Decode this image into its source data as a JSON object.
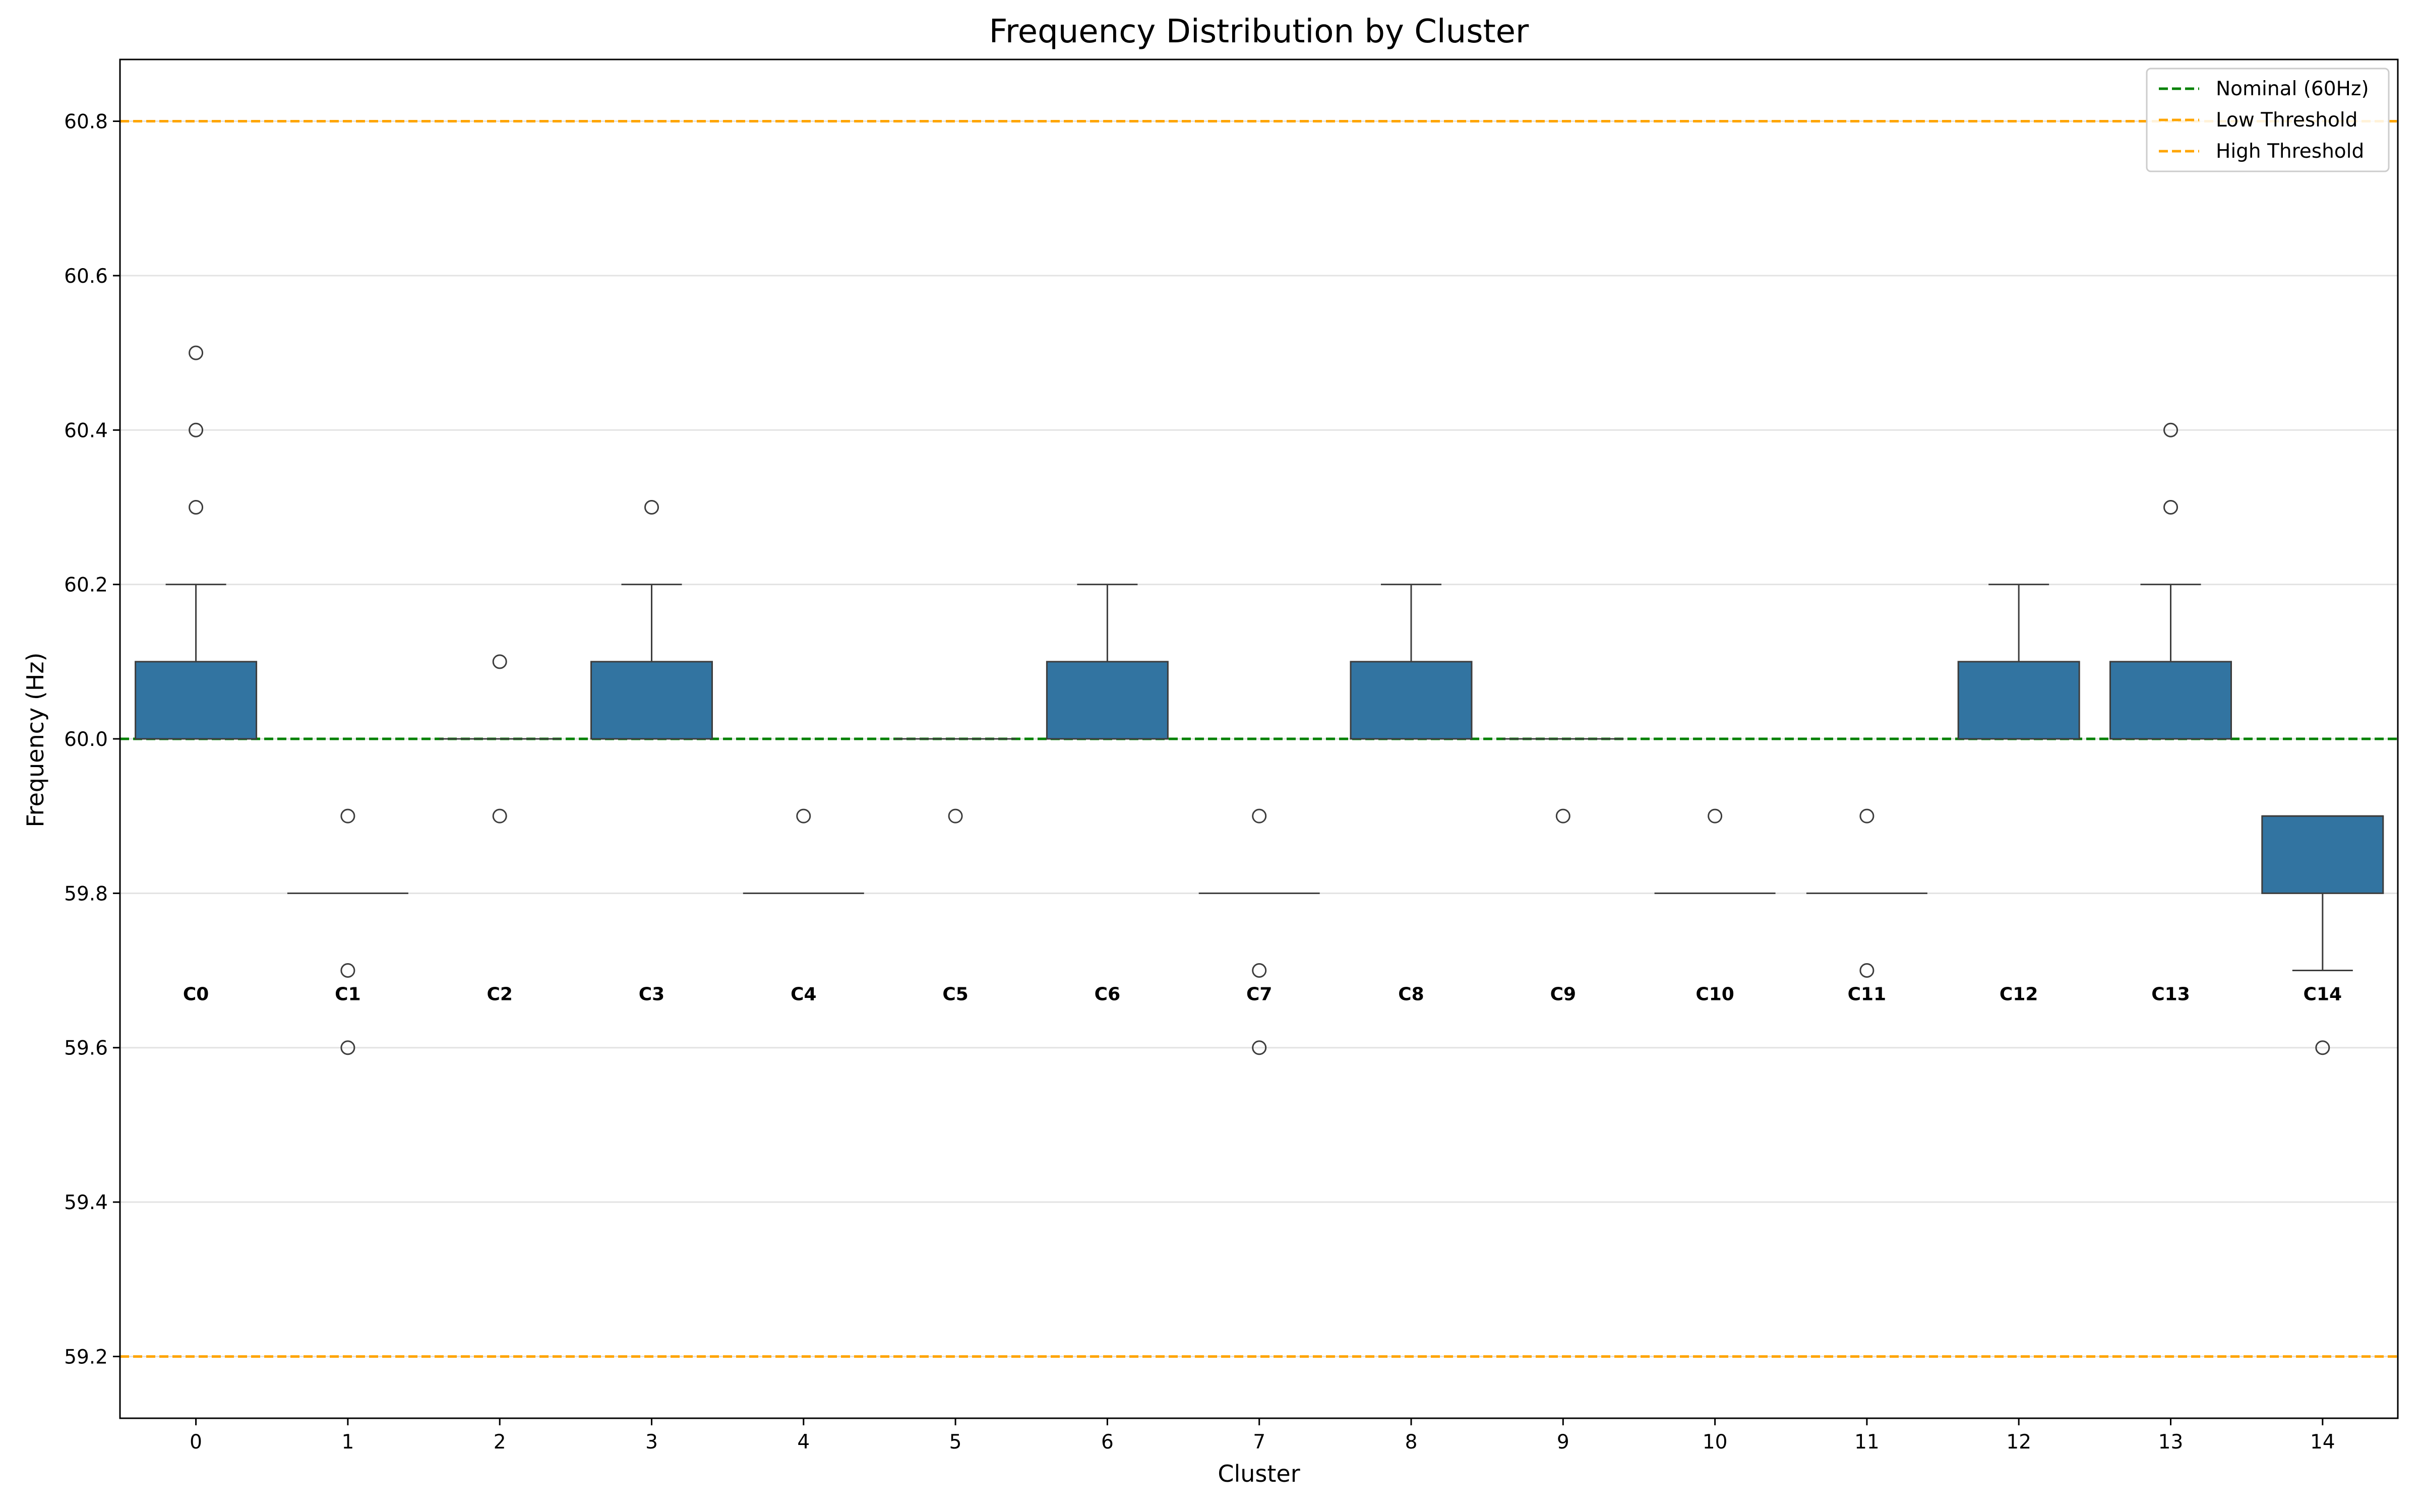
{
  "chart_data": {
    "type": "box",
    "title": "Frequency Distribution by Cluster",
    "xlabel": "Cluster",
    "ylabel": "Frequency (Hz)",
    "ylim": [
      59.12,
      60.88
    ],
    "yticks": [
      "59.2",
      "59.4",
      "59.6",
      "59.8",
      "60.0",
      "60.2",
      "60.4",
      "60.6",
      "60.8"
    ],
    "grid": "y",
    "legend_position": "top-right",
    "box_color": "#3274a1",
    "clusters": [
      {
        "x": "0",
        "label": "C0",
        "q1": 60.0,
        "median": 60.0,
        "q3": 60.1,
        "whisker_low": 60.0,
        "whisker_high": 60.2,
        "outliers": [
          60.3,
          60.4,
          60.5
        ]
      },
      {
        "x": "1",
        "label": "C1",
        "q1": 59.8,
        "median": 59.8,
        "q3": 59.8,
        "whisker_low": 59.8,
        "whisker_high": 59.8,
        "outliers": [
          59.9,
          59.7,
          59.6
        ]
      },
      {
        "x": "2",
        "label": "C2",
        "q1": 60.0,
        "median": 60.0,
        "q3": 60.0,
        "whisker_low": 60.0,
        "whisker_high": 60.0,
        "outliers": [
          60.1,
          59.9
        ]
      },
      {
        "x": "3",
        "label": "C3",
        "q1": 60.0,
        "median": 60.0,
        "q3": 60.1,
        "whisker_low": 60.0,
        "whisker_high": 60.2,
        "outliers": [
          60.3
        ]
      },
      {
        "x": "4",
        "label": "C4",
        "q1": 59.8,
        "median": 59.8,
        "q3": 59.8,
        "whisker_low": 59.8,
        "whisker_high": 59.8,
        "outliers": [
          59.9
        ]
      },
      {
        "x": "5",
        "label": "C5",
        "q1": 60.0,
        "median": 60.0,
        "q3": 60.0,
        "whisker_low": 60.0,
        "whisker_high": 60.0,
        "outliers": [
          59.9
        ]
      },
      {
        "x": "6",
        "label": "C6",
        "q1": 60.0,
        "median": 60.0,
        "q3": 60.1,
        "whisker_low": 60.0,
        "whisker_high": 60.2,
        "outliers": []
      },
      {
        "x": "7",
        "label": "C7",
        "q1": 59.8,
        "median": 59.8,
        "q3": 59.8,
        "whisker_low": 59.8,
        "whisker_high": 59.8,
        "outliers": [
          59.9,
          59.7,
          59.6
        ]
      },
      {
        "x": "8",
        "label": "C8",
        "q1": 60.0,
        "median": 60.0,
        "q3": 60.1,
        "whisker_low": 60.0,
        "whisker_high": 60.2,
        "outliers": []
      },
      {
        "x": "9",
        "label": "C9",
        "q1": 60.0,
        "median": 60.0,
        "q3": 60.0,
        "whisker_low": 60.0,
        "whisker_high": 60.0,
        "outliers": [
          59.9
        ]
      },
      {
        "x": "10",
        "label": "C10",
        "q1": 59.8,
        "median": 59.8,
        "q3": 59.8,
        "whisker_low": 59.8,
        "whisker_high": 59.8,
        "outliers": [
          59.9
        ]
      },
      {
        "x": "11",
        "label": "C11",
        "q1": 59.8,
        "median": 59.8,
        "q3": 59.8,
        "whisker_low": 59.8,
        "whisker_high": 59.8,
        "outliers": [
          59.9,
          59.7
        ]
      },
      {
        "x": "12",
        "label": "C12",
        "q1": 60.0,
        "median": 60.0,
        "q3": 60.1,
        "whisker_low": 60.0,
        "whisker_high": 60.2,
        "outliers": []
      },
      {
        "x": "13",
        "label": "C13",
        "q1": 60.0,
        "median": 60.0,
        "q3": 60.1,
        "whisker_low": 60.0,
        "whisker_high": 60.2,
        "outliers": [
          60.3,
          60.4
        ]
      },
      {
        "x": "14",
        "label": "C14",
        "q1": 59.8,
        "median": 59.9,
        "q3": 59.9,
        "whisker_low": 59.7,
        "whisker_high": 59.9,
        "outliers": [
          59.6
        ]
      }
    ],
    "reference_lines": [
      {
        "name": "Nominal (60Hz)",
        "y": 60.0,
        "color": "#008000",
        "style": "dashed"
      },
      {
        "name": "Low Threshold",
        "y": 59.2,
        "color": "#ffa500",
        "style": "dashed"
      },
      {
        "name": "High Threshold",
        "y": 60.8,
        "color": "#ffa500",
        "style": "dashed"
      }
    ],
    "cluster_label_y": 59.67
  }
}
